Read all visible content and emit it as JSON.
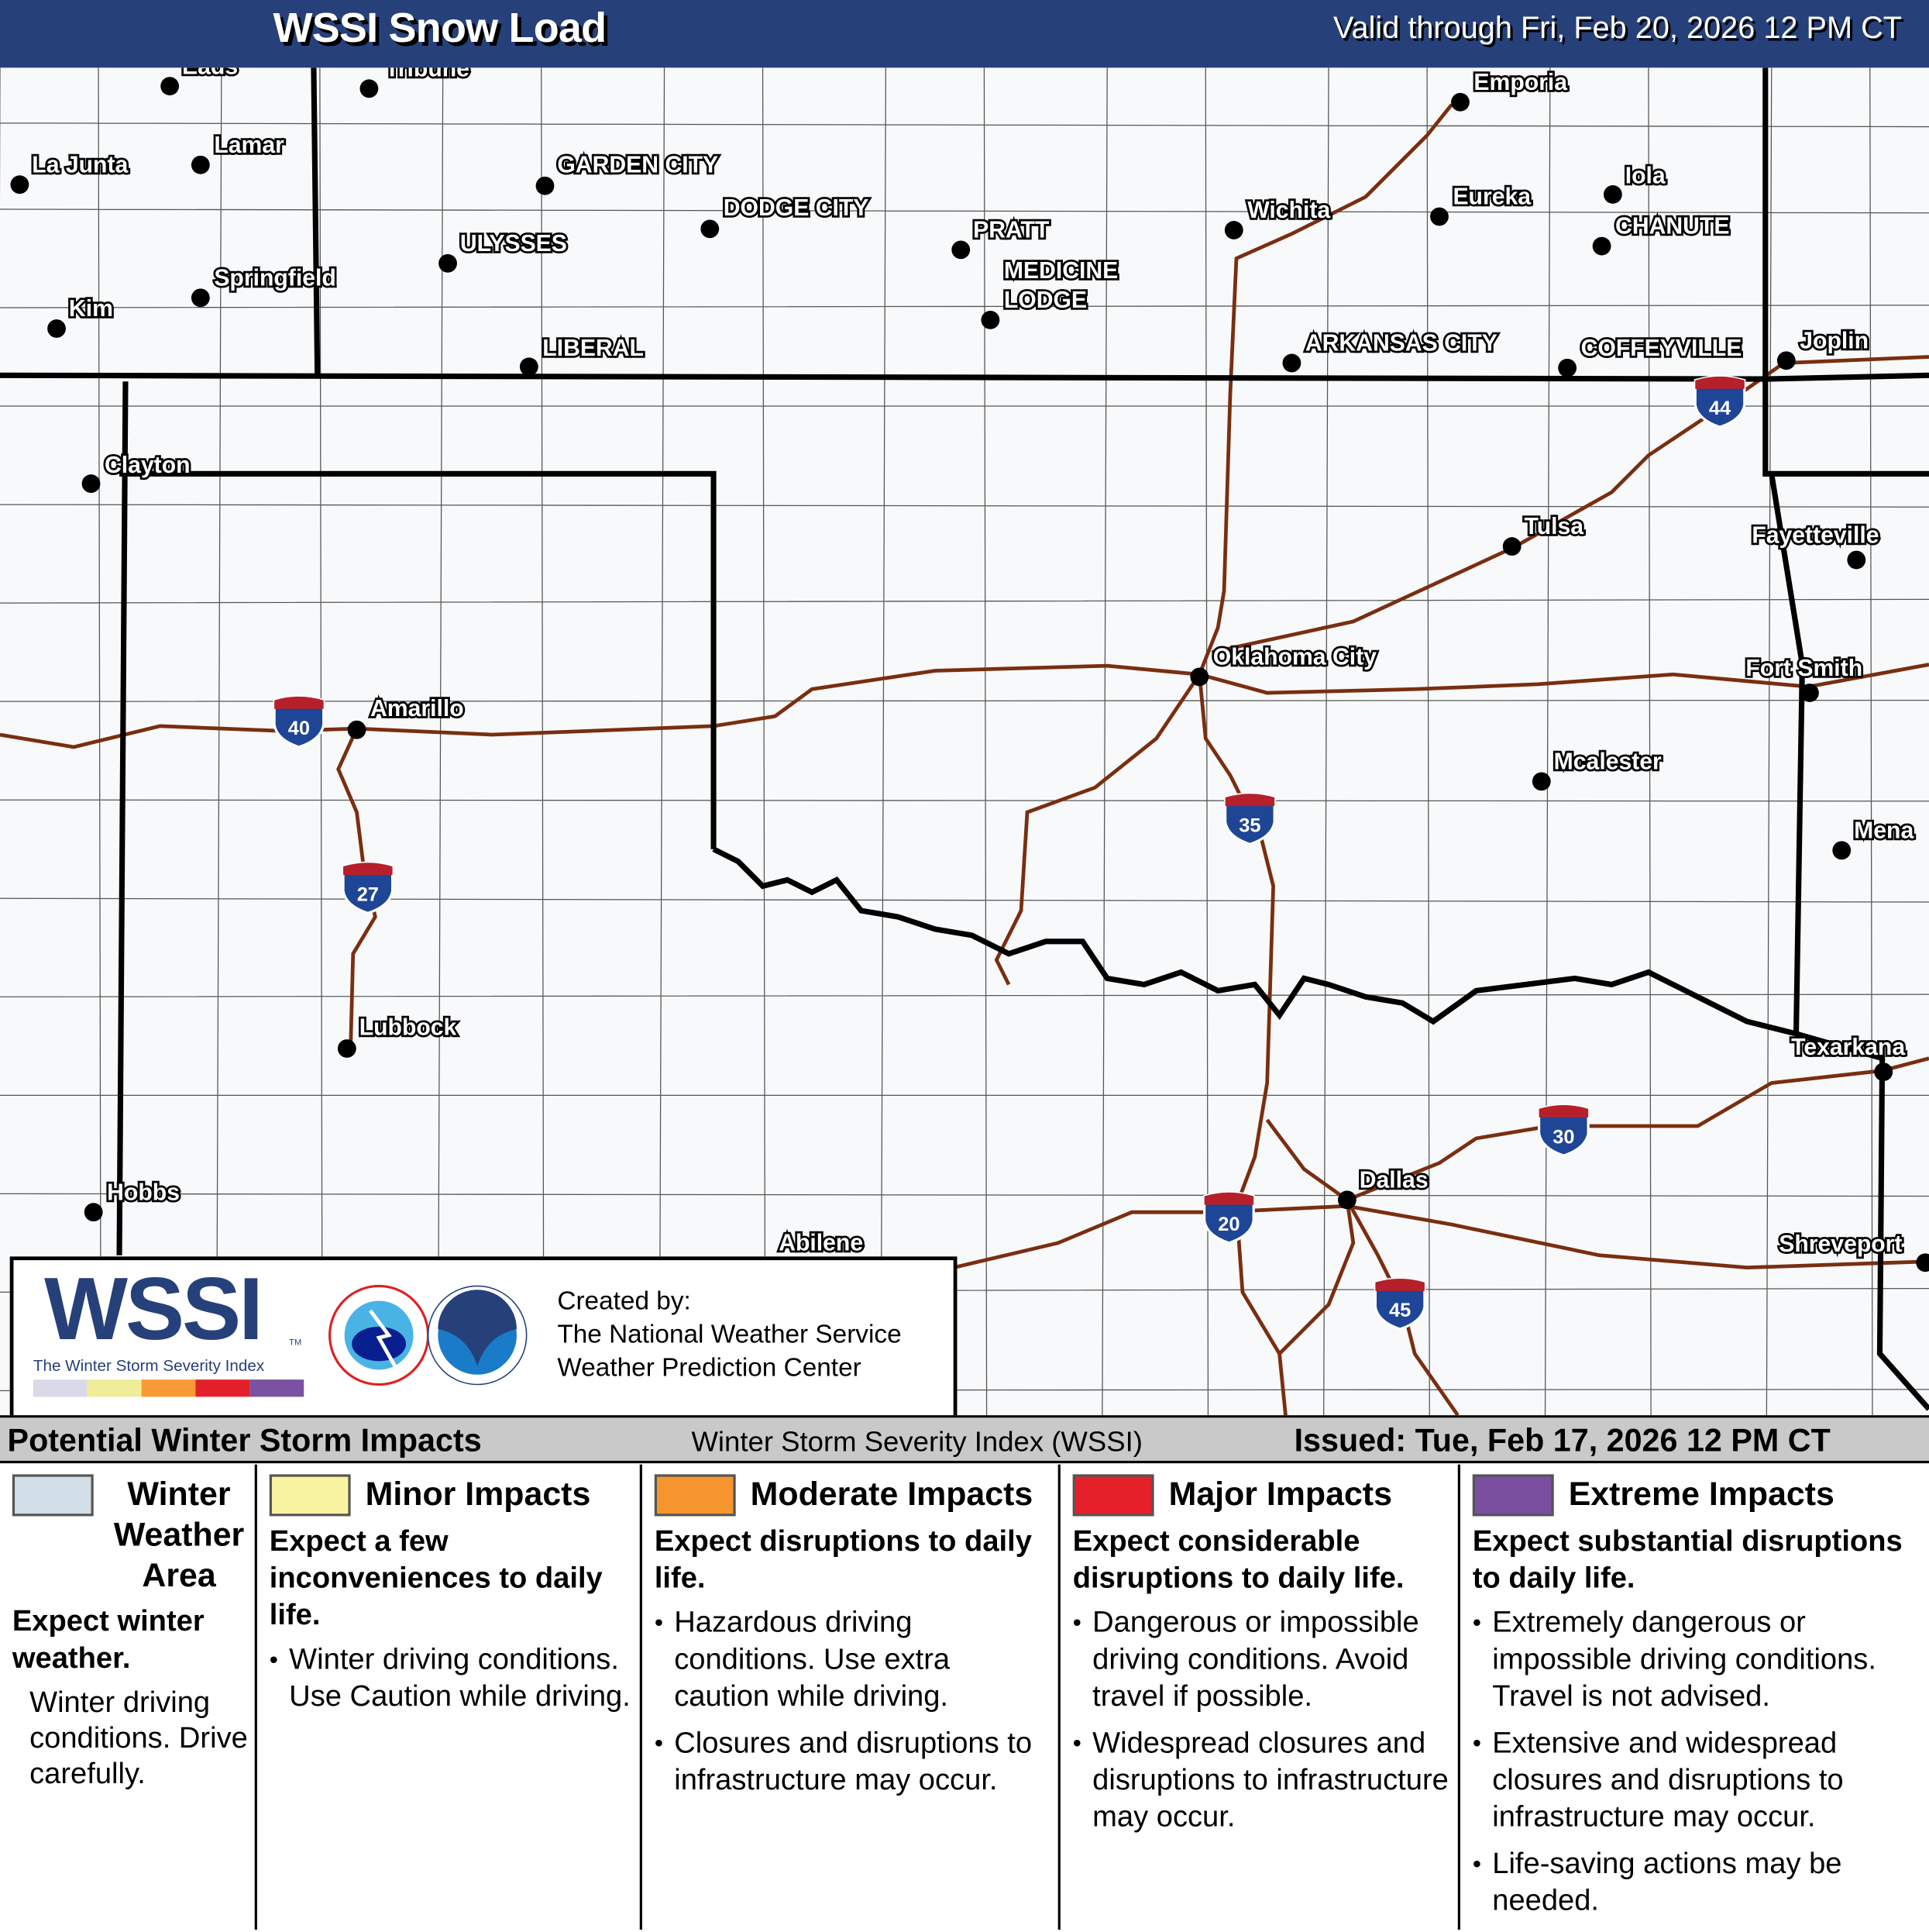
{
  "header": {
    "title": "WSSI Snow Load",
    "valid": "Valid through Fri, Feb 20, 2026 12 PM CT"
  },
  "map": {
    "colors": {
      "background": "#f8f9fb",
      "state_border": "#000000",
      "county_border": "#555555",
      "interstate": "#7a2e10",
      "shield_blue": "#1f4596",
      "shield_red": "#b5202a"
    },
    "cities": [
      "Eads",
      "Tribune",
      "Lamar",
      "La Junta",
      "GARDEN CITY",
      "DODGE CITY",
      "ULYSSES",
      "Springfield",
      "Kim",
      "LIBERAL",
      "PRATT",
      "MEDICINE",
      "LODGE",
      "Wichita",
      "Eureka",
      "Emporia",
      "Iola",
      "CHANUTE",
      "ARKANSAS CITY",
      "COFFEYVILLE",
      "Joplin",
      "Clayton",
      "Tulsa",
      "Fayetteville",
      "Oklahoma City",
      "Fort Smith",
      "Amarillo",
      "Mcalester",
      "Mena",
      "Lubbock",
      "Texarkana",
      "Dallas",
      "Hobbs",
      "Abilene",
      "Shreveport"
    ],
    "interstates": [
      "40",
      "27",
      "35",
      "44",
      "30",
      "20",
      "45"
    ]
  },
  "logo": {
    "wssi": "WSSI",
    "tm": "TM",
    "subtitle": "The Winter Storm Severity Index",
    "created_by": "Created by:",
    "org1": "The National Weather Service",
    "org2": "Weather Prediction Center",
    "bar_colors": [
      "#d9d9e8",
      "#eeee99",
      "#f89a35",
      "#e3202a",
      "#7b51a1"
    ]
  },
  "legend": {
    "left": "Potential Winter Storm Impacts",
    "mid": "Winter Storm Severity Index (WSSI)",
    "right": "Issued: Tue, Feb 17, 2026 12 PM CT",
    "categories": [
      {
        "name": "Winter Weather Area",
        "color": "#d3dfe8",
        "desc": "Expect winter weather.",
        "bullets": [
          "Winter driving conditions. Drive carefully."
        ]
      },
      {
        "name": "Minor Impacts",
        "color": "#f8f3a0",
        "desc": "Expect a few inconveniences to daily life.",
        "bullets": [
          "Winter driving conditions. Use Caution while driving."
        ]
      },
      {
        "name": "Moderate Impacts",
        "color": "#f7962f",
        "desc": "Expect disruptions to daily life.",
        "bullets": [
          "Hazardous driving conditions. Use extra caution while driving.",
          "Closures and disruptions to infrastructure may occur."
        ]
      },
      {
        "name": "Major Impacts",
        "color": "#e6202a",
        "desc": "Expect considerable disruptions to daily life.",
        "bullets": [
          "Dangerous or impossible driving conditions. Avoid travel if possible.",
          "Widespread closures and disruptions to infrastructure may occur."
        ]
      },
      {
        "name": "Extreme Impacts",
        "color": "#7a4fa0",
        "desc": "Expect substantial disruptions to daily life.",
        "bullets": [
          "Extremely dangerous or impossible driving conditions. Travel is not advised.",
          "Extensive and widespread closures and disruptions to infrastructure may occur.",
          "Life-saving actions may be needed."
        ]
      }
    ]
  }
}
